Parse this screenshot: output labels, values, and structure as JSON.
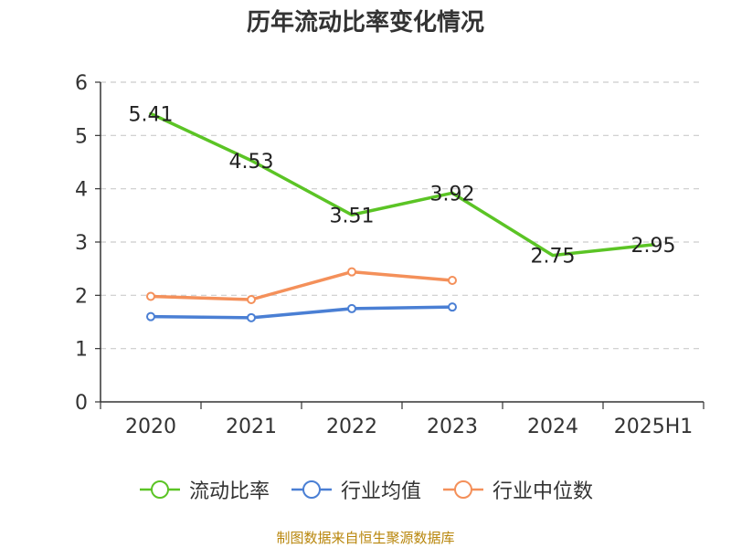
{
  "chart_data": {
    "type": "line",
    "title": "历年流动比率变化情况",
    "categories": [
      "2020",
      "2021",
      "2022",
      "2023",
      "2024",
      "2025H1"
    ],
    "ylim": [
      0,
      6
    ],
    "yticks": [
      0,
      1,
      2,
      3,
      4,
      5,
      6
    ],
    "grid": true,
    "legend_position": "bottom",
    "series": [
      {
        "name": "流动比率",
        "color": "#5bc425",
        "values": [
          5.41,
          4.53,
          3.51,
          3.92,
          2.75,
          2.95
        ],
        "labels": [
          "5.41",
          "4.53",
          "3.51",
          "3.92",
          "2.75",
          "2.95"
        ],
        "markers": false
      },
      {
        "name": "行业均值",
        "color": "#4a7fd4",
        "values": [
          1.6,
          1.58,
          1.75,
          1.78,
          null,
          null
        ],
        "markers": true
      },
      {
        "name": "行业中位数",
        "color": "#f4905a",
        "values": [
          1.98,
          1.92,
          2.44,
          2.28,
          null,
          null
        ],
        "markers": true
      }
    ],
    "source": "制图数据来自恒生聚源数据库"
  }
}
